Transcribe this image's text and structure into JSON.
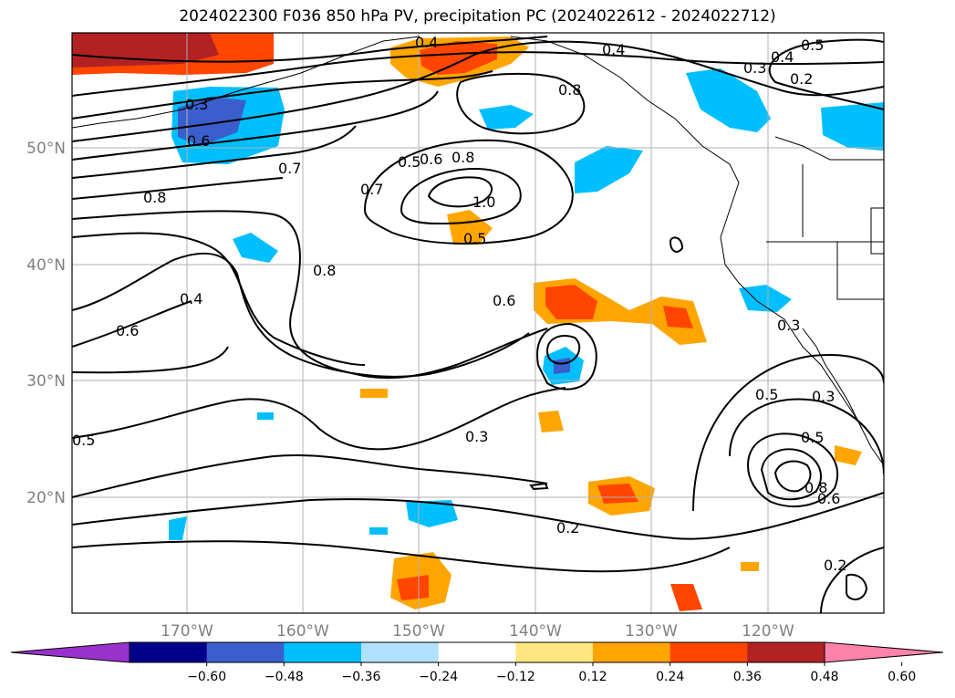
{
  "title": "2024022300 F036 850 hPa PV, precipitation PC (2024022612 - 2024022712)",
  "map": {
    "lat_labels": [
      "50°N",
      "40°N",
      "30°N",
      "20°N"
    ],
    "lon_labels": [
      "170°W",
      "160°W",
      "150°W",
      "140°W",
      "130°W",
      "120°W"
    ],
    "contour_labels": [
      "0.4",
      "0.4",
      "0.5",
      "0.4",
      "0.3",
      "0.2",
      "0.3",
      "0.6",
      "0.8",
      "0.7",
      "0.7",
      "0.5",
      "0.6",
      "0.8",
      "1.0",
      "0.5",
      "0.8",
      "0.8",
      "0.4",
      "0.6",
      "0.6",
      "0.5",
      "0.3",
      "0.2",
      "0.3",
      "0.5",
      "0.3",
      "0.5",
      "0.8",
      "0.6",
      "0.2"
    ]
  },
  "colorbar": {
    "labels": [
      "−0.60",
      "−0.48",
      "−0.36",
      "−0.24",
      "−0.12",
      "0.12",
      "0.24",
      "0.36",
      "0.48",
      "0.60"
    ],
    "colors": [
      "#9932cc",
      "#00008b",
      "#3a5fcd",
      "#00bfff",
      "#b0e2ff",
      "#ffffff",
      "#ffe680",
      "#ffa500",
      "#ff4500",
      "#b22222",
      "#ff82ab"
    ]
  }
}
